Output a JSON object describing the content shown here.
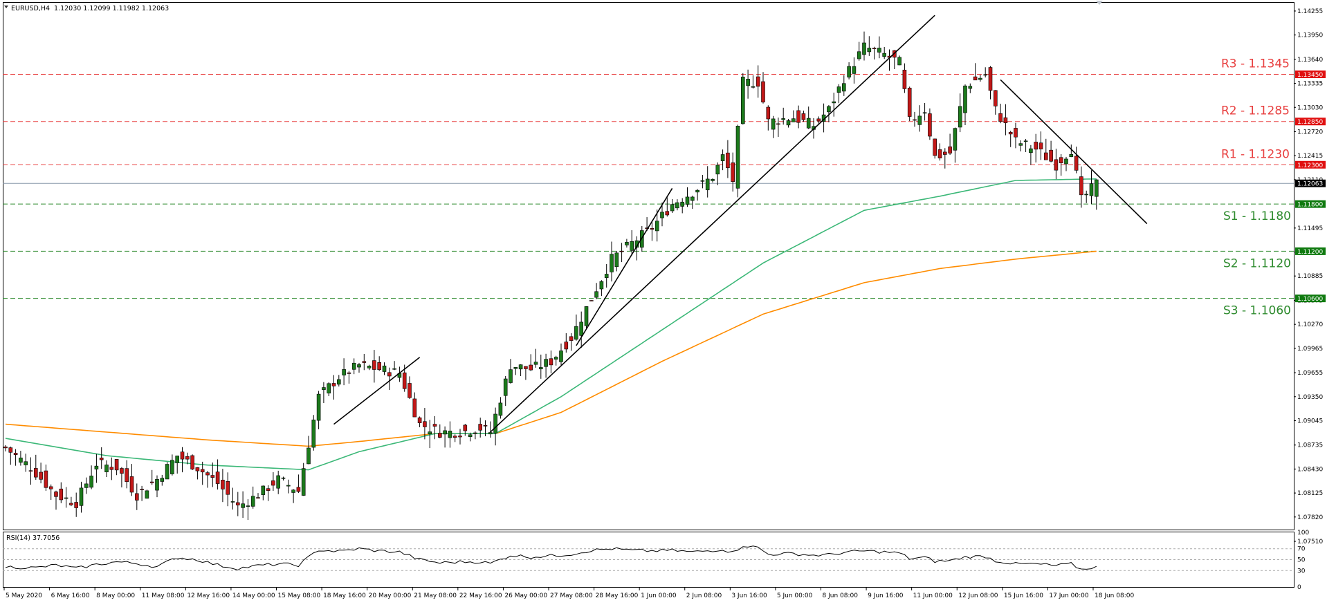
{
  "header": {
    "symbol": "EURUSD,H4",
    "ohlc": "1.12030 1.12099 1.11982 1.12063"
  },
  "colors": {
    "bull": "#1c7a1c",
    "bear": "#c21818",
    "wick": "#000000",
    "ma_fast": "#3cb878",
    "ma_slow": "#ff8c00",
    "resistance": "#e84040",
    "support": "#2e8b2e",
    "current": "#8899aa",
    "trendline": "#000000",
    "rsi_line": "#000000"
  },
  "chart_data": [
    {
      "type": "candlestick",
      "symbol": "EURUSD",
      "timeframe": "H4",
      "ylim": [
        1.0766,
        1.1436
      ],
      "y_ticks": [
        "1.14255",
        "1.13950",
        "1.13640",
        "1.13335",
        "1.13030",
        "1.12720",
        "1.12415",
        "1.12110",
        "1.11495",
        "1.11190",
        "1.10885",
        "1.10575",
        "1.10270",
        "1.09965",
        "1.09655",
        "1.09350",
        "1.09045",
        "1.08735",
        "1.08430",
        "1.08125",
        "1.07820",
        "1.07510"
      ],
      "x_ticks": [
        "5 May 2020",
        "6 May 16:00",
        "8 May 00:00",
        "11 May 08:00",
        "12 May 16:00",
        "14 May 00:00",
        "15 May 08:00",
        "18 May 16:00",
        "20 May 00:00",
        "21 May 08:00",
        "22 May 16:00",
        "26 May 00:00",
        "27 May 08:00",
        "28 May 16:00",
        "1 Jun 00:00",
        "2 Jun 08:00",
        "3 Jun 16:00",
        "5 Jun 00:00",
        "8 Jun 08:00",
        "9 Jun 16:00",
        "11 Jun 00:00",
        "12 Jun 08:00",
        "15 Jun 16:00",
        "17 Jun 00:00",
        "18 Jun 08:00"
      ],
      "close_anchors": [
        [
          0,
          1.087
        ],
        [
          5,
          1.0845
        ],
        [
          10,
          1.081
        ],
        [
          14,
          1.08
        ],
        [
          18,
          1.085
        ],
        [
          22,
          1.0845
        ],
        [
          26,
          1.081
        ],
        [
          30,
          1.083
        ],
        [
          34,
          1.086
        ],
        [
          38,
          1.0845
        ],
        [
          42,
          1.0825
        ],
        [
          46,
          1.0795
        ],
        [
          50,
          1.081
        ],
        [
          54,
          1.083
        ],
        [
          58,
          1.0815
        ],
        [
          62,
          1.0935
        ],
        [
          66,
          1.096
        ],
        [
          70,
          1.0975
        ],
        [
          74,
          1.097
        ],
        [
          78,
          1.0965
        ],
        [
          82,
          1.09
        ],
        [
          86,
          1.089
        ],
        [
          90,
          1.089
        ],
        [
          94,
          1.0895
        ],
        [
          96,
          1.089
        ],
        [
          100,
          1.0975
        ],
        [
          104,
          1.097
        ],
        [
          108,
          1.098
        ],
        [
          112,
          1.101
        ],
        [
          116,
          1.106
        ],
        [
          120,
          1.111
        ],
        [
          124,
          1.113
        ],
        [
          128,
          1.115
        ],
        [
          132,
          1.118
        ],
        [
          136,
          1.1195
        ],
        [
          140,
          1.1215
        ],
        [
          142,
          1.124
        ],
        [
          144,
          1.121
        ],
        [
          146,
          1.1335
        ],
        [
          149,
          1.1335
        ],
        [
          151,
          1.1285
        ],
        [
          156,
          1.129
        ],
        [
          160,
          1.128
        ],
        [
          163,
          1.13
        ],
        [
          166,
          1.134
        ],
        [
          170,
          1.138
        ],
        [
          174,
          1.137
        ],
        [
          177,
          1.136
        ],
        [
          179,
          1.1285
        ],
        [
          182,
          1.13
        ],
        [
          184,
          1.124
        ],
        [
          187,
          1.1245
        ],
        [
          190,
          1.133
        ],
        [
          194,
          1.1345
        ],
        [
          196,
          1.13
        ],
        [
          200,
          1.126
        ],
        [
          204,
          1.125
        ],
        [
          208,
          1.123
        ],
        [
          211,
          1.125
        ],
        [
          213,
          1.1185
        ],
        [
          216,
          1.1206
        ]
      ],
      "resistance": [
        {
          "label": "R3 - 1.1345",
          "value": 1.1345,
          "tag": "1.13450"
        },
        {
          "label": "R2 - 1.1285",
          "value": 1.1285,
          "tag": "1.12850"
        },
        {
          "label": "R1 - 1.1230",
          "value": 1.123,
          "tag": "1.12300"
        }
      ],
      "support": [
        {
          "label": "S1 - 1.1180",
          "value": 1.118,
          "tag": "1.11800"
        },
        {
          "label": "S2 - 1.1120",
          "value": 1.112,
          "tag": "1.11200"
        },
        {
          "label": "S3 - 1.1060",
          "value": 1.106,
          "tag": "1.10600"
        }
      ],
      "current": {
        "value": 1.12063,
        "tag": "1.12063"
      },
      "moving_averages": [
        {
          "anchors": [
            [
              0,
              1.0882
            ],
            [
              20,
              1.086
            ],
            [
              40,
              1.0848
            ],
            [
              60,
              1.0842
            ],
            [
              70,
              1.0865
            ],
            [
              85,
              1.0888
            ],
            [
              97,
              1.0888
            ],
            [
              110,
              1.0935
            ],
            [
              130,
              1.102
            ],
            [
              150,
              1.1105
            ],
            [
              170,
              1.1172
            ],
            [
              185,
              1.119
            ],
            [
              200,
              1.121
            ],
            [
              216,
              1.1212
            ]
          ]
        },
        {
          "anchors": [
            [
              0,
              1.09
            ],
            [
              20,
              1.089
            ],
            [
              40,
              1.088
            ],
            [
              60,
              1.0872
            ],
            [
              70,
              1.0878
            ],
            [
              85,
              1.0888
            ],
            [
              97,
              1.0888
            ],
            [
              110,
              1.0915
            ],
            [
              130,
              1.098
            ],
            [
              150,
              1.104
            ],
            [
              170,
              1.108
            ],
            [
              185,
              1.1098
            ],
            [
              200,
              1.111
            ],
            [
              216,
              1.112
            ]
          ]
        }
      ],
      "trendlines": [
        {
          "from": [
            65,
            1.09
          ],
          "to": [
            82,
            1.0985
          ]
        },
        {
          "from": [
            96,
            1.089
          ],
          "to": [
            184,
            1.142
          ]
        },
        {
          "from": [
            113,
            1.1
          ],
          "to": [
            132,
            1.12
          ]
        },
        {
          "from": [
            197,
            1.1338
          ],
          "to": [
            226,
            1.1155
          ]
        }
      ]
    },
    {
      "type": "line",
      "title": "RSI(14) 37.7056",
      "ylim": [
        0,
        100
      ],
      "y_ticks": [
        "100",
        "70",
        "50",
        "30",
        "0"
      ],
      "levels": [
        70,
        50,
        30
      ],
      "anchors": [
        [
          0,
          37
        ],
        [
          6,
          35
        ],
        [
          10,
          40
        ],
        [
          14,
          34
        ],
        [
          18,
          41
        ],
        [
          22,
          46
        ],
        [
          26,
          43
        ],
        [
          30,
          37
        ],
        [
          34,
          54
        ],
        [
          38,
          50
        ],
        [
          42,
          40
        ],
        [
          46,
          34
        ],
        [
          50,
          39
        ],
        [
          54,
          42
        ],
        [
          58,
          40
        ],
        [
          62,
          68
        ],
        [
          66,
          65
        ],
        [
          70,
          70
        ],
        [
          74,
          66
        ],
        [
          78,
          64
        ],
        [
          82,
          50
        ],
        [
          86,
          44
        ],
        [
          90,
          46
        ],
        [
          94,
          46
        ],
        [
          96,
          43
        ],
        [
          100,
          58
        ],
        [
          104,
          55
        ],
        [
          108,
          57
        ],
        [
          112,
          60
        ],
        [
          116,
          67
        ],
        [
          120,
          70
        ],
        [
          124,
          67
        ],
        [
          128,
          66
        ],
        [
          132,
          67
        ],
        [
          136,
          64
        ],
        [
          140,
          67
        ],
        [
          142,
          69
        ],
        [
          144,
          63
        ],
        [
          146,
          76
        ],
        [
          149,
          72
        ],
        [
          151,
          60
        ],
        [
          156,
          61
        ],
        [
          160,
          58
        ],
        [
          163,
          59
        ],
        [
          166,
          63
        ],
        [
          170,
          66
        ],
        [
          174,
          64
        ],
        [
          177,
          62
        ],
        [
          179,
          52
        ],
        [
          182,
          54
        ],
        [
          184,
          47
        ],
        [
          187,
          48
        ],
        [
          190,
          55
        ],
        [
          194,
          56
        ],
        [
          196,
          48
        ],
        [
          200,
          42
        ],
        [
          204,
          42
        ],
        [
          208,
          39
        ],
        [
          211,
          42
        ],
        [
          213,
          32
        ],
        [
          216,
          37.7
        ]
      ]
    }
  ]
}
